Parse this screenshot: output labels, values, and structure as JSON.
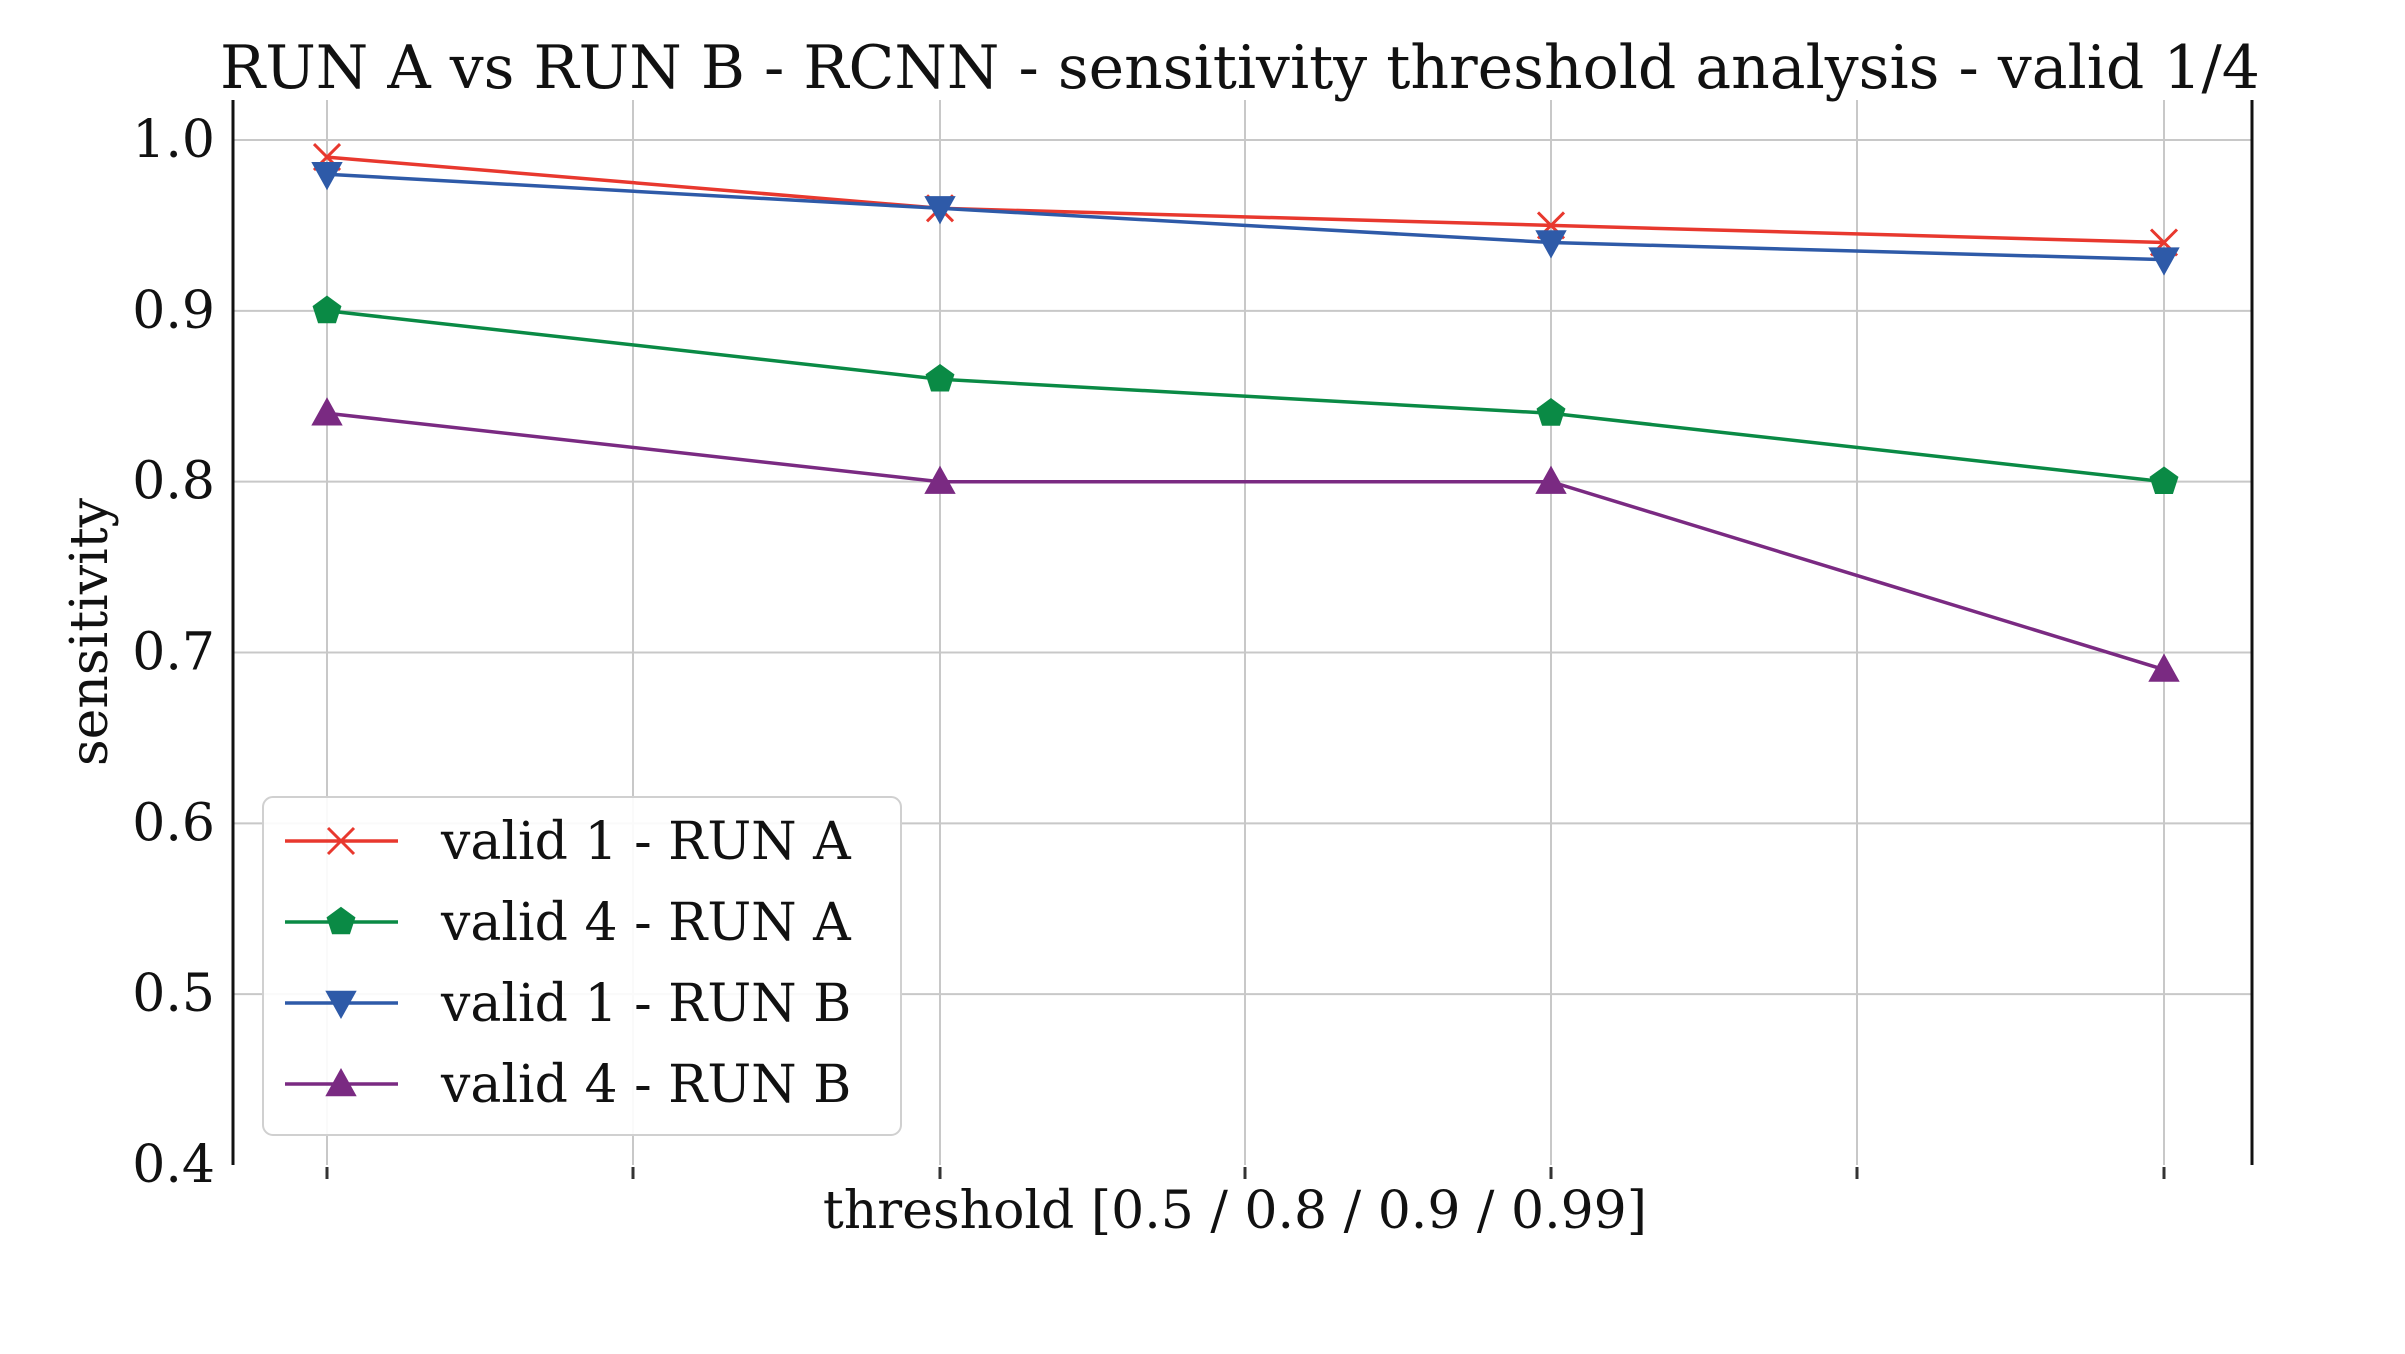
{
  "chart_data": {
    "type": "line",
    "title": "RUN A vs RUN B - RCNN - sensitivity threshold analysis - valid 1/4",
    "xlabel": "threshold [0.5 / 0.8 / 0.9 / 0.99]",
    "ylabel": "sensitivity",
    "x": [
      0.5,
      0.8,
      0.9,
      0.99
    ],
    "ylim": [
      0.4,
      1.0
    ],
    "yticks": [
      "0.4",
      "0.5",
      "0.6",
      "0.7",
      "0.8",
      "0.9",
      "1.0"
    ],
    "grid": true,
    "legend_position": "lower-left",
    "series": [
      {
        "name": "valid 1 - RUN A",
        "values": [
          0.99,
          0.96,
          0.95,
          0.94
        ],
        "color": "#e8382e",
        "marker": "x"
      },
      {
        "name": "valid 4 - RUN A",
        "values": [
          0.9,
          0.86,
          0.84,
          0.8
        ],
        "color": "#0a8a45",
        "marker": "pentagon"
      },
      {
        "name": "valid 1 - RUN B",
        "values": [
          0.98,
          0.96,
          0.94,
          0.93
        ],
        "color": "#2e5aa8",
        "marker": "triangle-down"
      },
      {
        "name": "valid 4 - RUN B",
        "values": [
          0.84,
          0.8,
          0.8,
          0.69
        ],
        "color": "#7a2a82",
        "marker": "triangle-up"
      }
    ]
  }
}
